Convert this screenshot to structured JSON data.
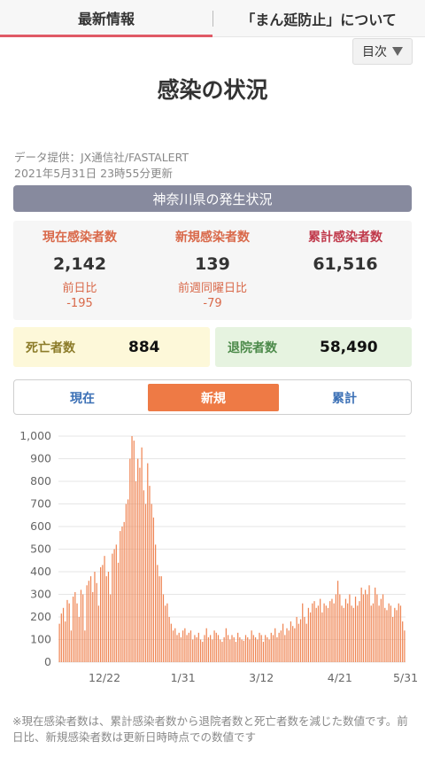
{
  "nav": {
    "tab1": "最新情報",
    "tab2": "「まん延防止」について"
  },
  "toc": {
    "label": "目次",
    "icon": "triangle-down-icon"
  },
  "page_title": "感染の状況",
  "meta": {
    "source": "データ提供：JX通信社/FASTALERT",
    "updated": "2021年5月31日 23時55分更新"
  },
  "prefecture_bar": "神奈川県の発生状況",
  "stats": [
    {
      "label": "現在感染者数",
      "value": "2,142",
      "sub_label": "前日比",
      "sub_value": "-195"
    },
    {
      "label": "新規感染者数",
      "value": "139",
      "sub_label": "前週同曜日比",
      "sub_value": "-79"
    },
    {
      "label": "累計感染者数",
      "value": "61,516"
    }
  ],
  "deaths": {
    "label": "死亡者数",
    "value": "884"
  },
  "discharged": {
    "label": "退院者数",
    "value": "58,490"
  },
  "segment": {
    "options": [
      "現在",
      "新規",
      "累計"
    ],
    "selected": "新規"
  },
  "colors": {
    "bar": "#ef8452",
    "accent": "#ee7a45",
    "nav_underline": "#e05a66",
    "prefecture_bar": "#878a9e"
  },
  "chart_data": {
    "type": "bar",
    "ylim": [
      0,
      1000
    ],
    "yticks": [
      "0",
      "100",
      "200",
      "300",
      "400",
      "500",
      "600",
      "700",
      "800",
      "900",
      "1,000"
    ],
    "xticks": [
      "12/22",
      "1/31",
      "3/12",
      "4/21",
      "5/31"
    ],
    "xtick_positions": [
      23,
      63,
      103,
      143,
      183
    ],
    "values": [
      170,
      215,
      240,
      180,
      275,
      260,
      140,
      290,
      310,
      260,
      200,
      320,
      300,
      140,
      340,
      360,
      380,
      310,
      400,
      350,
      250,
      420,
      430,
      470,
      380,
      400,
      300,
      480,
      500,
      520,
      440,
      580,
      600,
      620,
      700,
      720,
      900,
      1000,
      980,
      800,
      900,
      860,
      950,
      760,
      700,
      880,
      780,
      700,
      640,
      520,
      430,
      380,
      380,
      300,
      250,
      260,
      200,
      170,
      140,
      150,
      120,
      130,
      110,
      140,
      150,
      120,
      130,
      140,
      100,
      120,
      110,
      130,
      100,
      90,
      120,
      150,
      110,
      120,
      100,
      140,
      130,
      120,
      100,
      90,
      110,
      150,
      120,
      100,
      120,
      110,
      90,
      130,
      110,
      100,
      95,
      120,
      110,
      100,
      140,
      120,
      110,
      100,
      130,
      120,
      90,
      120,
      110,
      100,
      130,
      120,
      150,
      110,
      130,
      140,
      170,
      120,
      150,
      140,
      180,
      160,
      150,
      200,
      170,
      190,
      260,
      200,
      170,
      240,
      220,
      260,
      270,
      240,
      250,
      280,
      220,
      260,
      250,
      240,
      270,
      280,
      260,
      300,
      360,
      300,
      250,
      240,
      280,
      260,
      300,
      250,
      240,
      290,
      250,
      270,
      330,
      300,
      320,
      300,
      340,
      250,
      260,
      330,
      300,
      250,
      280,
      300,
      240,
      230,
      260,
      250,
      200,
      240,
      230,
      260,
      250,
      180,
      140
    ]
  },
  "footnote": "※現在感染者数は、累計感染者数から退院者数と死亡者数を減じた数値です。前日比、新規感染者数は更新日時時点での数値です"
}
